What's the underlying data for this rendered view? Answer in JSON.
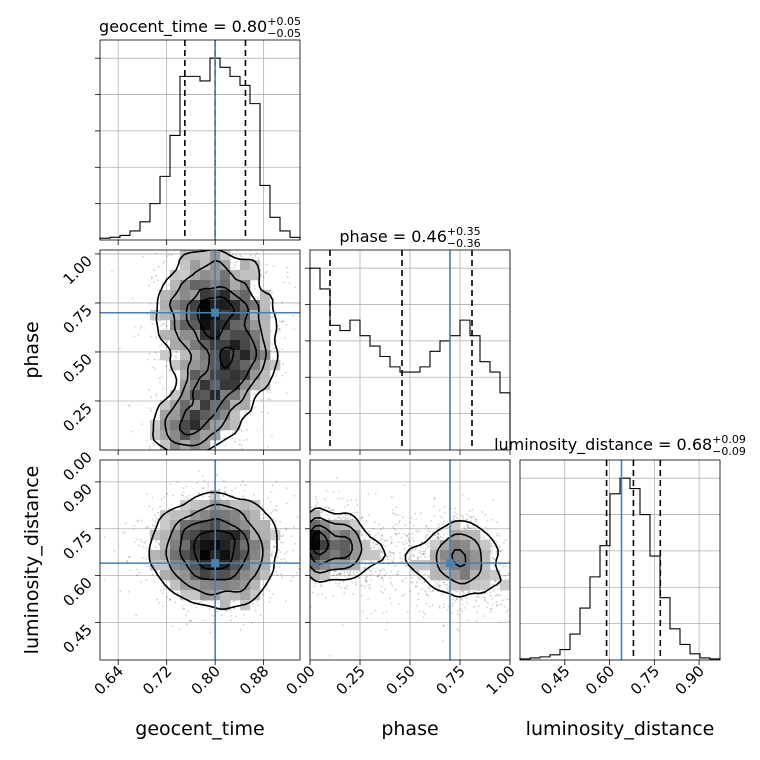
{
  "figure": {
    "parameters": [
      "geocent_time",
      "phase",
      "luminosity_distance"
    ],
    "truth_color": "#4682b4"
  },
  "chart_data": [
    {
      "type": "histogram",
      "panel": "geocent_time",
      "title": {
        "label": "geocent_time",
        "eq": " = ",
        "median": "0.80",
        "plus": "+0.05",
        "minus": "−0.05"
      },
      "xlim": [
        0.61,
        0.94
      ],
      "bins": [
        0.61,
        0.6265,
        0.643,
        0.6595,
        0.676,
        0.6925,
        0.709,
        0.7255,
        0.742,
        0.7585,
        0.775,
        0.7915,
        0.808,
        0.8245,
        0.841,
        0.8575,
        0.874,
        0.8905,
        0.907,
        0.9235,
        0.94
      ],
      "counts": [
        2,
        3,
        5,
        10,
        20,
        40,
        70,
        115,
        180,
        180,
        175,
        200,
        190,
        180,
        170,
        150,
        60,
        25,
        10,
        3
      ],
      "quantiles": [
        0.75,
        0.8,
        0.85
      ],
      "truth": 0.8
    },
    {
      "type": "histogram",
      "panel": "phase",
      "title": {
        "label": "phase",
        "eq": " = ",
        "median": "0.46",
        "plus": "+0.35",
        "minus": "−0.36"
      },
      "xlim": [
        0.0,
        1.0
      ],
      "bins": [
        0,
        0.05,
        0.1,
        0.15,
        0.2,
        0.25,
        0.3,
        0.35,
        0.4,
        0.45,
        0.5,
        0.55,
        0.6,
        0.65,
        0.7,
        0.75,
        0.8,
        0.85,
        0.9,
        0.95,
        1.0
      ],
      "counts": [
        175,
        155,
        120,
        115,
        125,
        110,
        100,
        90,
        80,
        75,
        75,
        80,
        95,
        105,
        110,
        125,
        110,
        85,
        75,
        55
      ],
      "quantiles": [
        0.1,
        0.46,
        0.81
      ],
      "truth": 0.7
    },
    {
      "type": "histogram",
      "panel": "luminosity_distance",
      "title": {
        "label": "luminosity_distance",
        "eq": " = ",
        "median": "0.68",
        "plus": "+0.09",
        "minus": "−0.09"
      },
      "xlim": [
        0.3,
        0.97
      ],
      "bins": [
        0.3,
        0.3335,
        0.367,
        0.4005,
        0.434,
        0.4675,
        0.501,
        0.5345,
        0.568,
        0.6015,
        0.635,
        0.6685,
        0.702,
        0.7355,
        0.769,
        0.8025,
        0.836,
        0.8695,
        0.903,
        0.9365,
        0.97
      ],
      "counts": [
        1,
        2,
        3,
        5,
        10,
        25,
        50,
        80,
        110,
        160,
        175,
        165,
        140,
        100,
        60,
        30,
        15,
        6,
        2,
        1
      ],
      "quantiles": [
        0.59,
        0.68,
        0.77
      ],
      "truth": 0.64
    },
    {
      "type": "scatter-contour",
      "panel": "phase vs geocent_time",
      "x_param": "geocent_time",
      "y_param": "phase",
      "xlim": [
        0.61,
        0.94
      ],
      "ylim": [
        0.0,
        1.02
      ],
      "truth": [
        0.8,
        0.7
      ],
      "density_description": "two correlated modes, one at phase≈0.70 and one at phase≈0.05–0.15"
    },
    {
      "type": "scatter-contour",
      "panel": "luminosity_distance vs geocent_time",
      "x_param": "geocent_time",
      "y_param": "luminosity_distance",
      "xlim": [
        0.61,
        0.94
      ],
      "ylim": [
        0.33,
        0.97
      ],
      "truth": [
        0.8,
        0.64
      ],
      "density_center": [
        0.8,
        0.68
      ]
    },
    {
      "type": "scatter-contour",
      "panel": "luminosity_distance vs phase",
      "x_param": "phase",
      "y_param": "luminosity_distance",
      "xlim": [
        0.0,
        1.0
      ],
      "ylim": [
        0.33,
        0.97
      ],
      "truth": [
        0.7,
        0.64
      ],
      "density_description": "band near luminosity_distance≈0.68 across phase with peaks near 0.0, 0.17 and 0.75"
    }
  ],
  "axes": {
    "geocent_time": {
      "label": "geocent_time",
      "ticks": [
        0.64,
        0.72,
        0.8,
        0.88
      ],
      "tick_labels": [
        "0.64",
        "0.72",
        "0.80",
        "0.88"
      ]
    },
    "phase_x": {
      "label": "phase",
      "ticks": [
        0.0,
        0.25,
        0.5,
        0.75,
        1.0
      ],
      "tick_labels": [
        "0.00",
        "0.25",
        "0.50",
        "0.75",
        "1.00"
      ]
    },
    "phase_y": {
      "label": "phase",
      "ticks": [
        0.25,
        0.5,
        0.75,
        1.0
      ],
      "tick_labels": [
        "0.25",
        "0.50",
        "0.75",
        "1.00"
      ]
    },
    "luminosity_distance_x": {
      "label": "luminosity_distance",
      "ticks": [
        0.45,
        0.6,
        0.75,
        0.9
      ],
      "tick_labels": [
        "0.45",
        "0.60",
        "0.75",
        "0.90"
      ]
    },
    "luminosity_distance_y": {
      "label": "luminosity_distance",
      "ticks": [
        0.45,
        0.6,
        0.75,
        0.9
      ],
      "tick_labels": [
        "0.45",
        "0.60",
        "0.75",
        "0.90"
      ]
    },
    "phase_y_zero_label": "0.00"
  }
}
